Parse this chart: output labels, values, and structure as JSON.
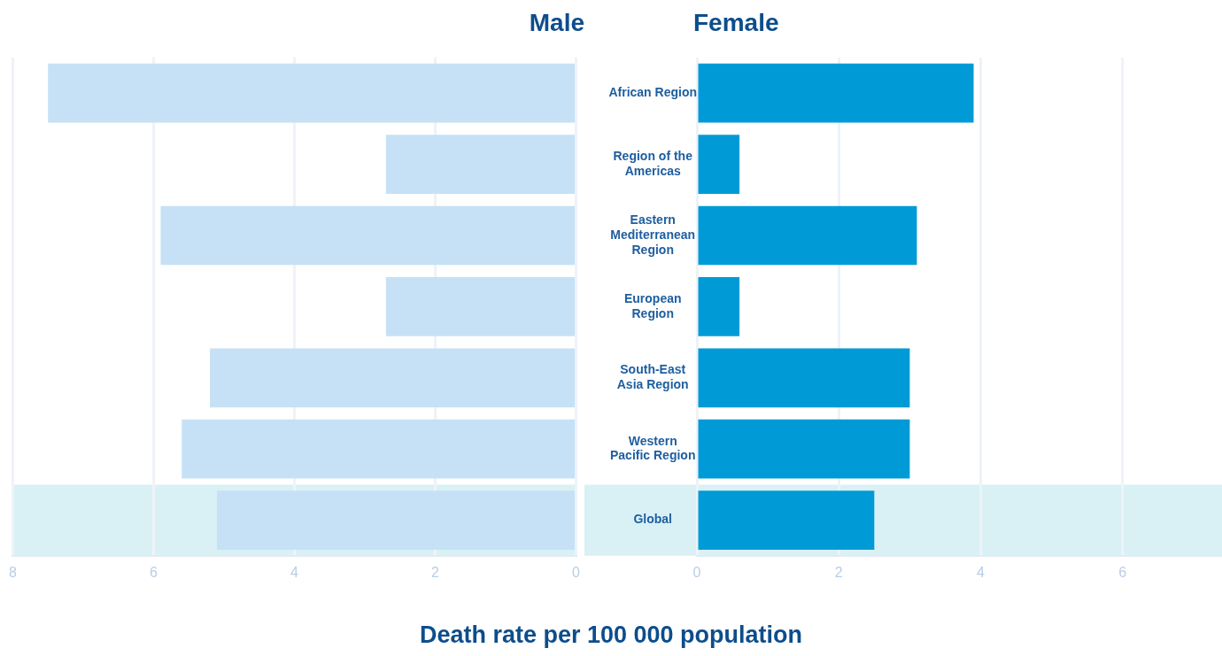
{
  "chart_data": [
    {
      "type": "bar",
      "orientation": "horizontal",
      "title": "Male",
      "categories": [
        "African Region",
        "Region of the Americas",
        "Eastern Mediterranean Region",
        "European Region",
        "South-East Asia Region",
        "Western Pacific Region",
        "Global"
      ],
      "values": [
        7.5,
        2.7,
        5.9,
        2.7,
        5.2,
        5.6,
        5.1
      ],
      "color": "#c6e1f5",
      "xlim": [
        8,
        0
      ],
      "xticks": [
        8,
        6,
        4,
        2,
        0
      ],
      "grid": "x",
      "tick_labels": "x",
      "bands": [
        {
          "axis": "y",
          "from": "Global",
          "to": "Global",
          "color": "#d9f1f5"
        }
      ]
    },
    {
      "type": "bar",
      "orientation": "horizontal",
      "title": "Female",
      "xlabel": "Death rate per 100 000 population",
      "categories": [
        "African Region",
        "Region of the Americas",
        "Eastern Mediterranean Region",
        "European Region",
        "South-East Asia Region",
        "Western Pacific Region",
        "Global"
      ],
      "values": [
        3.9,
        0.6,
        3.1,
        0.6,
        3.0,
        3.0,
        2.5
      ],
      "color": "#009bd7",
      "xlim": [
        0,
        7.4
      ],
      "xticks": [
        0,
        2,
        4,
        6
      ],
      "grid": "x",
      "bands": [
        {
          "axis": "y",
          "from": "Global",
          "to": "Global",
          "color": "#d9f1f5"
        }
      ]
    }
  ]
}
